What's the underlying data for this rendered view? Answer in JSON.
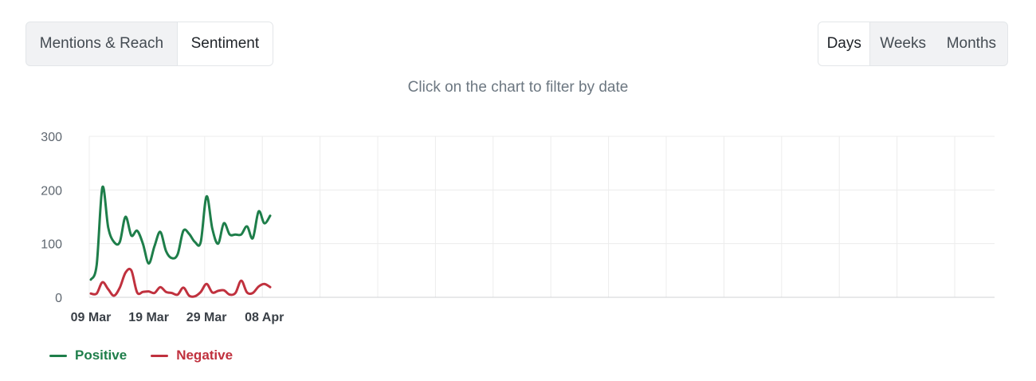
{
  "tabs": {
    "items": [
      {
        "label": "Mentions & Reach",
        "active": false
      },
      {
        "label": "Sentiment",
        "active": true
      }
    ]
  },
  "period": {
    "items": [
      {
        "label": "Days",
        "active": true
      },
      {
        "label": "Weeks",
        "active": false
      },
      {
        "label": "Months",
        "active": false
      }
    ]
  },
  "hint": "Click on the chart to filter by date",
  "chart_data": {
    "type": "line",
    "x": [
      "09 Mar",
      "10 Mar",
      "11 Mar",
      "12 Mar",
      "13 Mar",
      "14 Mar",
      "15 Mar",
      "16 Mar",
      "17 Mar",
      "18 Mar",
      "19 Mar",
      "20 Mar",
      "21 Mar",
      "22 Mar",
      "23 Mar",
      "24 Mar",
      "25 Mar",
      "26 Mar",
      "27 Mar",
      "28 Mar",
      "29 Mar",
      "30 Mar",
      "31 Mar",
      "01 Apr",
      "02 Apr",
      "03 Apr",
      "04 Apr",
      "05 Apr",
      "06 Apr",
      "07 Apr",
      "08 Apr",
      "09 Apr"
    ],
    "x_ticks": [
      "09 Mar",
      "19 Mar",
      "29 Mar",
      "08 Apr"
    ],
    "y_ticks": [
      0,
      100,
      200,
      300
    ],
    "ylim": [
      0,
      300
    ],
    "grid": true,
    "legend_position": "bottom-left",
    "series": [
      {
        "name": "Positive",
        "color": "#1e7e4a",
        "values": [
          33,
          60,
          205,
          130,
          103,
          103,
          150,
          115,
          124,
          100,
          63,
          95,
          122,
          86,
          73,
          80,
          124,
          118,
          103,
          103,
          188,
          128,
          100,
          138,
          117,
          117,
          117,
          132,
          110,
          160,
          138,
          152
        ]
      },
      {
        "name": "Negative",
        "color": "#c0313e",
        "values": [
          7,
          7,
          28,
          15,
          3,
          18,
          46,
          50,
          9,
          10,
          11,
          8,
          19,
          10,
          8,
          5,
          18,
          3,
          2,
          10,
          25,
          9,
          12,
          13,
          5,
          8,
          31,
          9,
          8,
          20,
          25,
          19
        ]
      }
    ]
  }
}
